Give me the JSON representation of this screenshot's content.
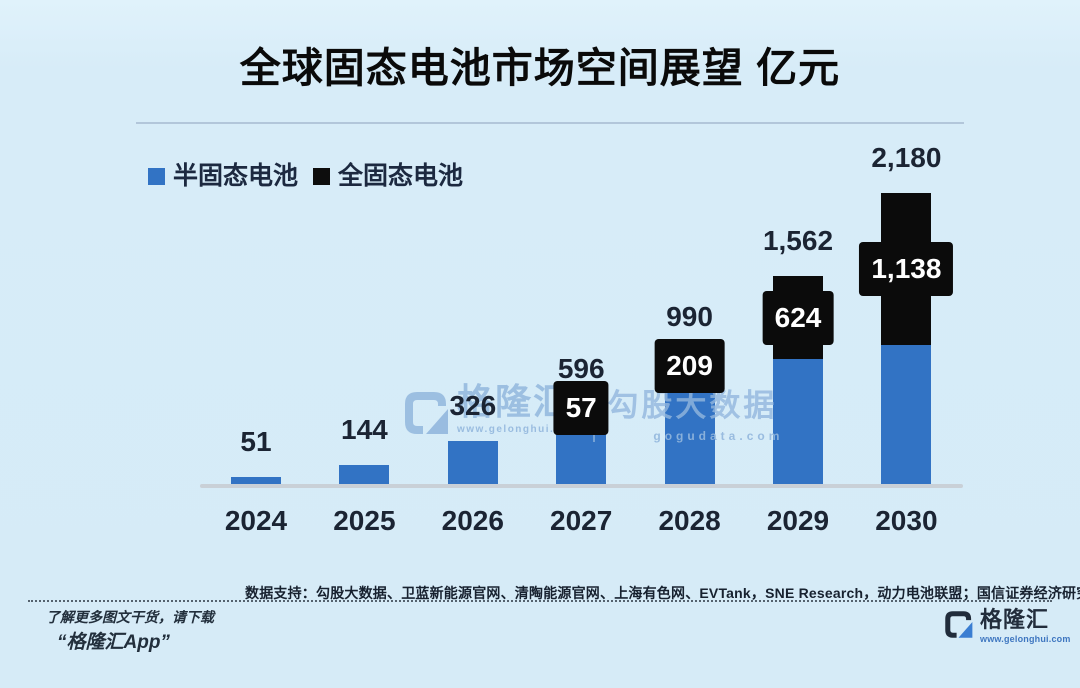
{
  "title": "全球固态电池市场空间展望 亿元",
  "legend": [
    {
      "label": "半固态电池",
      "color": "#3273c4"
    },
    {
      "label": "全固态电池",
      "color": "#0d0d0d"
    }
  ],
  "chart_data": {
    "type": "bar",
    "stacked": true,
    "title": "全球固态电池市场空间展望 亿元",
    "unit": "亿元",
    "categories": [
      "2024",
      "2025",
      "2026",
      "2027",
      "2028",
      "2029",
      "2030"
    ],
    "series": [
      {
        "name": "半固态电池",
        "color": "#3273c4",
        "values": [
          51,
          144,
          326,
          539,
          781,
          938,
          1042
        ]
      },
      {
        "name": "全固态电池",
        "color": "#0b0b0b",
        "values": [
          0,
          0,
          0,
          57,
          209,
          624,
          1138
        ]
      }
    ],
    "total_labels": [
      "51",
      "144",
      "326",
      "596",
      "990",
      "1,562",
      "2,180"
    ],
    "segment_labels": [
      "",
      "",
      "",
      "57",
      "209",
      "624",
      "1,138"
    ],
    "xlabel": "",
    "ylabel": "",
    "ylim": [
      0,
      2300
    ],
    "grid": false,
    "legend_position": "top-left"
  },
  "watermark": {
    "brand": "格隆汇",
    "brand_url": "www.gelonghui.com",
    "data_brand": "勾股大数据",
    "data_url": "gogudata.com"
  },
  "source_note": "数据支持：勾股大数据、卫蓝新能源官网、清陶能源官网、上海有色网、EVTank，SNE Research，动力电池联盟；国信证券经济研究所整理与测算",
  "footer": {
    "line1": "了解更多图文干货，请下载",
    "line2": "“格隆汇App”",
    "logo_text": "格隆汇",
    "logo_url": "www.gelonghui.com"
  }
}
